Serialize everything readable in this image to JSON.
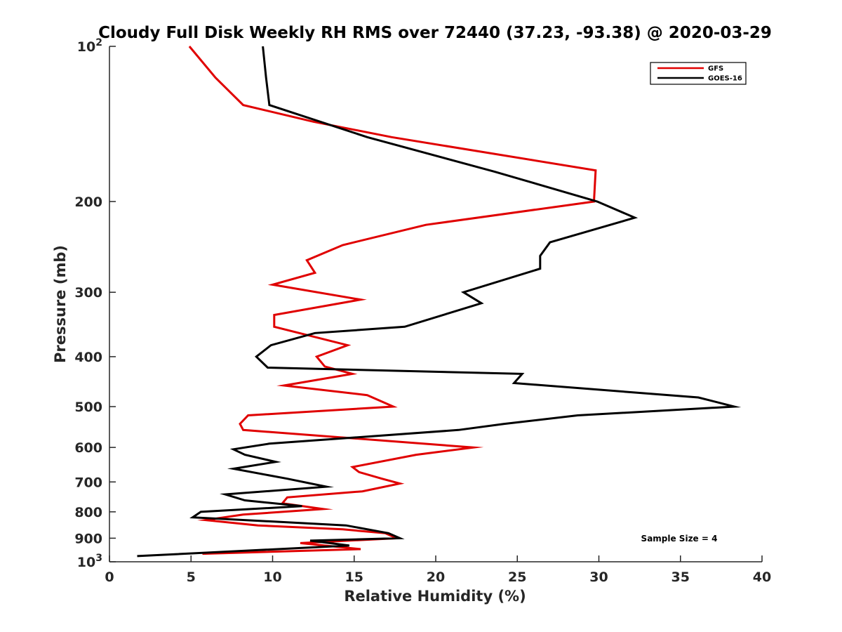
{
  "chart_data": {
    "type": "line",
    "title": "Cloudy Full Disk Weekly RH RMS over 72440 (37.23, -93.38) @ 2020-03-29",
    "xlabel": "Relative Humidity (%)",
    "ylabel": "Pressure (mb)",
    "xlim": [
      0,
      40
    ],
    "ylim": [
      100,
      1000
    ],
    "y_scale": "log",
    "y_reversed": true,
    "x_ticks": [
      {
        "value": 0,
        "label": "0"
      },
      {
        "value": 5,
        "label": "5"
      },
      {
        "value": 10,
        "label": "10"
      },
      {
        "value": 15,
        "label": "15"
      },
      {
        "value": 20,
        "label": "20"
      },
      {
        "value": 25,
        "label": "25"
      },
      {
        "value": 30,
        "label": "30"
      },
      {
        "value": 35,
        "label": "35"
      },
      {
        "value": 40,
        "label": "40"
      }
    ],
    "y_ticks": [
      {
        "value": 100,
        "label": "10",
        "sup": "2"
      },
      {
        "value": 200,
        "label": "200",
        "sup": ""
      },
      {
        "value": 300,
        "label": "300",
        "sup": ""
      },
      {
        "value": 400,
        "label": "400",
        "sup": ""
      },
      {
        "value": 500,
        "label": "500",
        "sup": ""
      },
      {
        "value": 600,
        "label": "600",
        "sup": ""
      },
      {
        "value": 700,
        "label": "700",
        "sup": ""
      },
      {
        "value": 800,
        "label": "800",
        "sup": ""
      },
      {
        "value": 900,
        "label": "900",
        "sup": ""
      },
      {
        "value": 1000,
        "label": "10",
        "sup": "3"
      }
    ],
    "grid": false,
    "legend_position": "top-right",
    "annotation": "Sample Size = 4",
    "series": [
      {
        "name": "GFS",
        "color": "#e00000",
        "points": [
          [
            4.9,
            100
          ],
          [
            6.5,
            115
          ],
          [
            8.2,
            130
          ],
          [
            12.5,
            140
          ],
          [
            17.3,
            150
          ],
          [
            29.8,
            174
          ],
          [
            29.7,
            200
          ],
          [
            19.4,
            222
          ],
          [
            14.3,
            243
          ],
          [
            12.1,
            260
          ],
          [
            12.6,
            275
          ],
          [
            10.0,
            290
          ],
          [
            15.4,
            310
          ],
          [
            10.1,
            332
          ],
          [
            10.1,
            350
          ],
          [
            14.6,
            380
          ],
          [
            12.7,
            400
          ],
          [
            13.2,
            418
          ],
          [
            14.9,
            432
          ],
          [
            10.7,
            455
          ],
          [
            15.8,
            475
          ],
          [
            17.4,
            500
          ],
          [
            8.5,
            520
          ],
          [
            8.0,
            540
          ],
          [
            8.2,
            555
          ],
          [
            22.3,
            600
          ],
          [
            18.8,
            620
          ],
          [
            14.9,
            655
          ],
          [
            15.3,
            670
          ],
          [
            16.7,
            690
          ],
          [
            17.8,
            705
          ],
          [
            15.5,
            730
          ],
          [
            10.9,
            750
          ],
          [
            10.6,
            770
          ],
          [
            13.1,
            790
          ],
          [
            8.2,
            810
          ],
          [
            5.9,
            830
          ],
          [
            9.1,
            850
          ],
          [
            14.3,
            865
          ],
          [
            16.9,
            880
          ],
          [
            17.6,
            900
          ],
          [
            11.7,
            920
          ],
          [
            15.4,
            945
          ],
          [
            5.7,
            965
          ]
        ]
      },
      {
        "name": "GOES-16",
        "color": "#000000",
        "points": [
          [
            9.4,
            100
          ],
          [
            9.6,
            115
          ],
          [
            9.8,
            130
          ],
          [
            15.8,
            150
          ],
          [
            23.6,
            175
          ],
          [
            29.9,
            200
          ],
          [
            32.2,
            215
          ],
          [
            27.0,
            240
          ],
          [
            26.4,
            255
          ],
          [
            26.4,
            270
          ],
          [
            21.7,
            300
          ],
          [
            22.8,
            315
          ],
          [
            18.1,
            350
          ],
          [
            12.6,
            360
          ],
          [
            9.9,
            380
          ],
          [
            9.0,
            400
          ],
          [
            9.7,
            420
          ],
          [
            25.3,
            432
          ],
          [
            24.8,
            450
          ],
          [
            36.1,
            480
          ],
          [
            38.3,
            500
          ],
          [
            28.7,
            520
          ],
          [
            24.2,
            540
          ],
          [
            21.4,
            555
          ],
          [
            9.8,
            590
          ],
          [
            7.6,
            605
          ],
          [
            8.3,
            620
          ],
          [
            10.2,
            640
          ],
          [
            7.6,
            660
          ],
          [
            10.9,
            690
          ],
          [
            13.3,
            715
          ],
          [
            7.1,
            740
          ],
          [
            8.3,
            760
          ],
          [
            11.8,
            780
          ],
          [
            5.6,
            800
          ],
          [
            5.1,
            820
          ],
          [
            14.5,
            850
          ],
          [
            17.1,
            880
          ],
          [
            17.8,
            900
          ],
          [
            12.3,
            910
          ],
          [
            14.7,
            930
          ],
          [
            1.7,
            975
          ]
        ]
      }
    ]
  }
}
